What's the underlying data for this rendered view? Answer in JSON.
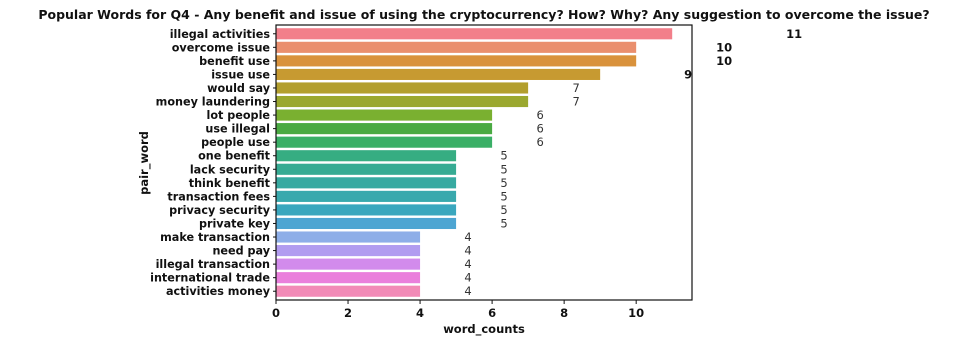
{
  "chart_data": {
    "type": "bar",
    "orientation": "horizontal",
    "title": "Popular Words for Q4 - Any benefit and issue of using the cryptocurrency? How? Why? Any suggestion to overcome the issue?",
    "xlabel": "word_counts",
    "ylabel": "pair_word",
    "xlim": [
      0,
      11.55
    ],
    "xticks": [
      0,
      2,
      4,
      6,
      8,
      10
    ],
    "grid": false,
    "legend": "none",
    "categories": [
      "illegal activities",
      "overcome issue",
      "benefit use",
      "issue use",
      "would say",
      "money laundering",
      "lot people",
      "use illegal",
      "people use",
      "one benefit",
      "lack security",
      "think benefit",
      "transaction fees",
      "privacy security",
      "private key",
      "make transaction",
      "need pay",
      "illegal transaction",
      "international trade",
      "activities money"
    ],
    "values": [
      11,
      10,
      10,
      9,
      7,
      7,
      6,
      6,
      6,
      5,
      5,
      5,
      5,
      5,
      5,
      4,
      4,
      4,
      4,
      4
    ],
    "data_labels": [
      "11",
      "10",
      "10",
      "9",
      "7",
      "7",
      "6",
      "6",
      "6",
      "5",
      "5",
      "5",
      "5",
      "5",
      "5",
      "4",
      "4",
      "4",
      "4",
      "4"
    ],
    "colors": [
      "#f27f8a",
      "#ea8f6e",
      "#d9923c",
      "#c79a31",
      "#b39f2e",
      "#9ba82f",
      "#7ab030",
      "#4aaa42",
      "#3aaf66",
      "#36ad82",
      "#36ab93",
      "#37aaa1",
      "#39a9ad",
      "#3aa7be",
      "#4da5d2",
      "#8eaee8",
      "#b29cf0",
      "#d28bec",
      "#ea7fdc",
      "#f28ab7"
    ]
  }
}
